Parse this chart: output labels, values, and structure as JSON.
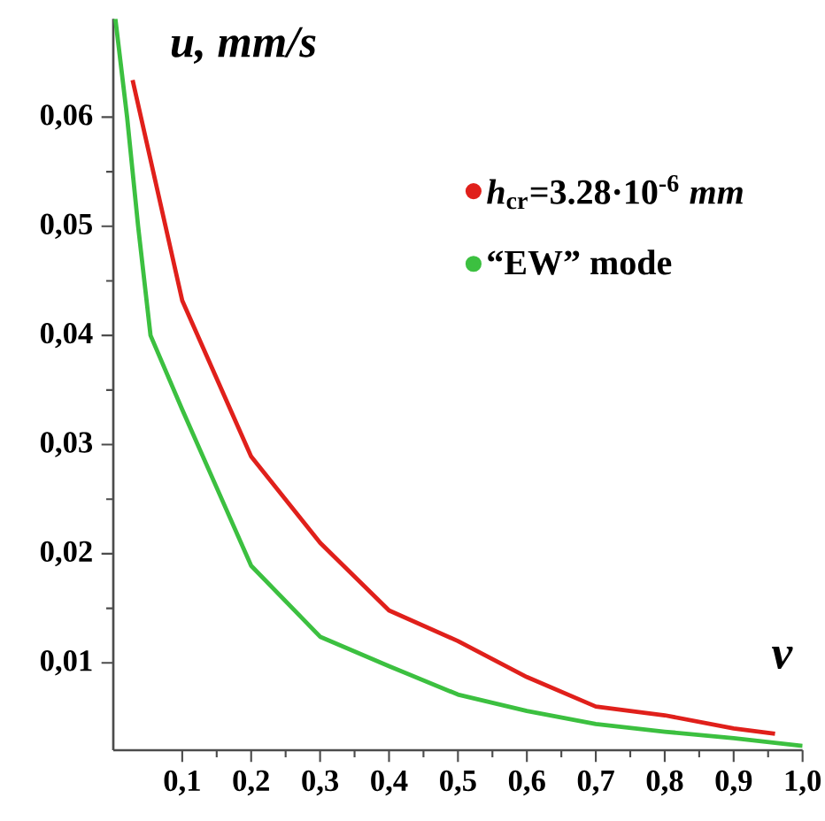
{
  "chart_data": {
    "type": "line",
    "xlabel": "v",
    "ylabel": "u, mm/s",
    "xlim": [
      0,
      1
    ],
    "ylim": [
      0.002,
      0.069
    ],
    "xticks": [
      {
        "value": 0.1,
        "label": "0,1"
      },
      {
        "value": 0.2,
        "label": "0,2"
      },
      {
        "value": 0.3,
        "label": "0,3"
      },
      {
        "value": 0.4,
        "label": "0,4"
      },
      {
        "value": 0.5,
        "label": "0,5"
      },
      {
        "value": 0.6,
        "label": "0,6"
      },
      {
        "value": 0.7,
        "label": "0,7"
      },
      {
        "value": 0.8,
        "label": "0,8"
      },
      {
        "value": 0.9,
        "label": "0,9"
      },
      {
        "value": 1.0,
        "label": "1,0"
      }
    ],
    "yticks": [
      {
        "value": 0.01,
        "label": "0,01"
      },
      {
        "value": 0.02,
        "label": "0,02"
      },
      {
        "value": 0.03,
        "label": "0,03"
      },
      {
        "value": 0.04,
        "label": "0,04"
      },
      {
        "value": 0.05,
        "label": "0,05"
      },
      {
        "value": 0.06,
        "label": "0,06"
      }
    ],
    "grid": false,
    "legend": "right",
    "marker": "none",
    "line_style": "solid",
    "series": [
      {
        "name": "*h*$_{cr}$=3.28·10$^{-6}$ *mm*",
        "color": "#e0201b",
        "x": [
          0.028,
          0.1,
          0.2,
          0.3,
          0.4,
          0.5,
          0.6,
          0.7,
          0.8,
          0.9,
          0.96
        ],
        "values": [
          0.0634,
          0.0432,
          0.0289,
          0.021,
          0.0148,
          0.012,
          0.0087,
          0.006,
          0.0052,
          0.004,
          0.0035
        ]
      },
      {
        "name": "“EW” mode",
        "color": "#3cc040",
        "x": [
          0.003,
          0.02,
          0.036,
          0.054,
          0.1,
          0.2,
          0.3,
          0.4,
          0.5,
          0.6,
          0.7,
          0.8,
          0.9,
          1.0
        ],
        "values": [
          0.069,
          0.06,
          0.05,
          0.04,
          0.0332,
          0.0189,
          0.0124,
          0.0097,
          0.0071,
          0.0056,
          0.0044,
          0.0037,
          0.0031,
          0.0024
        ]
      }
    ]
  }
}
